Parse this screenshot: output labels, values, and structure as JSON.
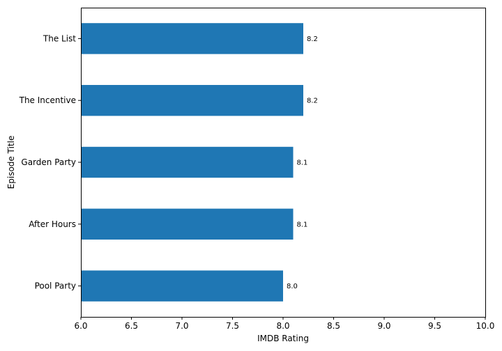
{
  "chart_data": {
    "type": "bar",
    "orientation": "horizontal",
    "categories": [
      "The List",
      "The Incentive",
      "Garden Party",
      "After Hours",
      "Pool Party"
    ],
    "values": [
      8.2,
      8.2,
      8.1,
      8.1,
      8.0
    ],
    "value_labels": [
      "8.2",
      "8.2",
      "8.1",
      "8.1",
      "8.0"
    ],
    "xlabel": "IMDB Rating",
    "ylabel": "Episode Title",
    "xlim": [
      6.0,
      10.0
    ],
    "xticks": [
      6.0,
      6.5,
      7.0,
      7.5,
      8.0,
      8.5,
      9.0,
      9.5,
      10.0
    ],
    "xtick_labels": [
      "6.0",
      "6.5",
      "7.0",
      "7.5",
      "8.0",
      "8.5",
      "9.0",
      "9.5",
      "10.0"
    ],
    "bar_color": "#1f77b4",
    "grid": false,
    "legend": "none"
  }
}
